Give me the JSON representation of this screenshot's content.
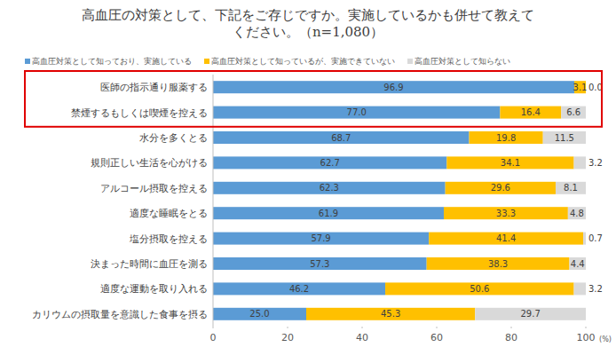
{
  "chart_data": {
    "type": "bar",
    "orientation": "horizontal",
    "stacked": true,
    "data_labels": true,
    "grid": false,
    "legend": "top",
    "title": "高血圧の対策として、下記をご存じですか。実施しているかも併せて教えてください。（n=1,080）",
    "x_label": "(%)",
    "xlim": [
      0,
      100
    ],
    "xticks": [
      0,
      20,
      40,
      60,
      80,
      100
    ],
    "categories": [
      "医師の指示通り服薬する",
      "禁煙するもしくは喫煙を控える",
      "水分を多くとる",
      "規則正しい生活を心がける",
      "アルコール摂取を控える",
      "適度な睡眠をとる",
      "塩分摂取を控える",
      "決まった時間に血圧を測る",
      "適度な運動を取り入れる",
      "カリウムの摂取量を意識した食事を摂る"
    ],
    "series": [
      {
        "name": "高血圧対策として知っており、実施している",
        "color": "#5b9bd5",
        "values": [
          96.9,
          77.0,
          68.7,
          62.7,
          62.3,
          61.9,
          57.9,
          57.3,
          46.2,
          25.0
        ],
        "value_labels": [
          "96.9",
          "77.0",
          "68.7",
          "62.7",
          "62.3",
          "61.9",
          "57.9",
          "57.3",
          "46.2",
          "25.0"
        ]
      },
      {
        "name": "高血圧対策として知っているが、実施できていない",
        "color": "#ffc000",
        "values": [
          3.1,
          16.4,
          19.8,
          34.1,
          29.6,
          33.3,
          41.4,
          38.3,
          50.6,
          45.3
        ],
        "value_labels": [
          "3.1",
          "16.4",
          "19.8",
          "34.1",
          "29.6",
          "33.3",
          "41.4",
          "38.3",
          "50.6",
          "45.3"
        ]
      },
      {
        "name": "高血圧対策として知らない",
        "color": "#d9d9d9",
        "values": [
          0.0,
          6.6,
          11.5,
          3.2,
          8.1,
          4.8,
          0.7,
          4.4,
          3.2,
          29.7
        ],
        "value_labels": [
          "0.0",
          "6.6",
          "11.5",
          "3.2",
          "8.1",
          "4.8",
          "0.7",
          "4.4",
          "3.2",
          "29.7"
        ]
      }
    ]
  }
}
